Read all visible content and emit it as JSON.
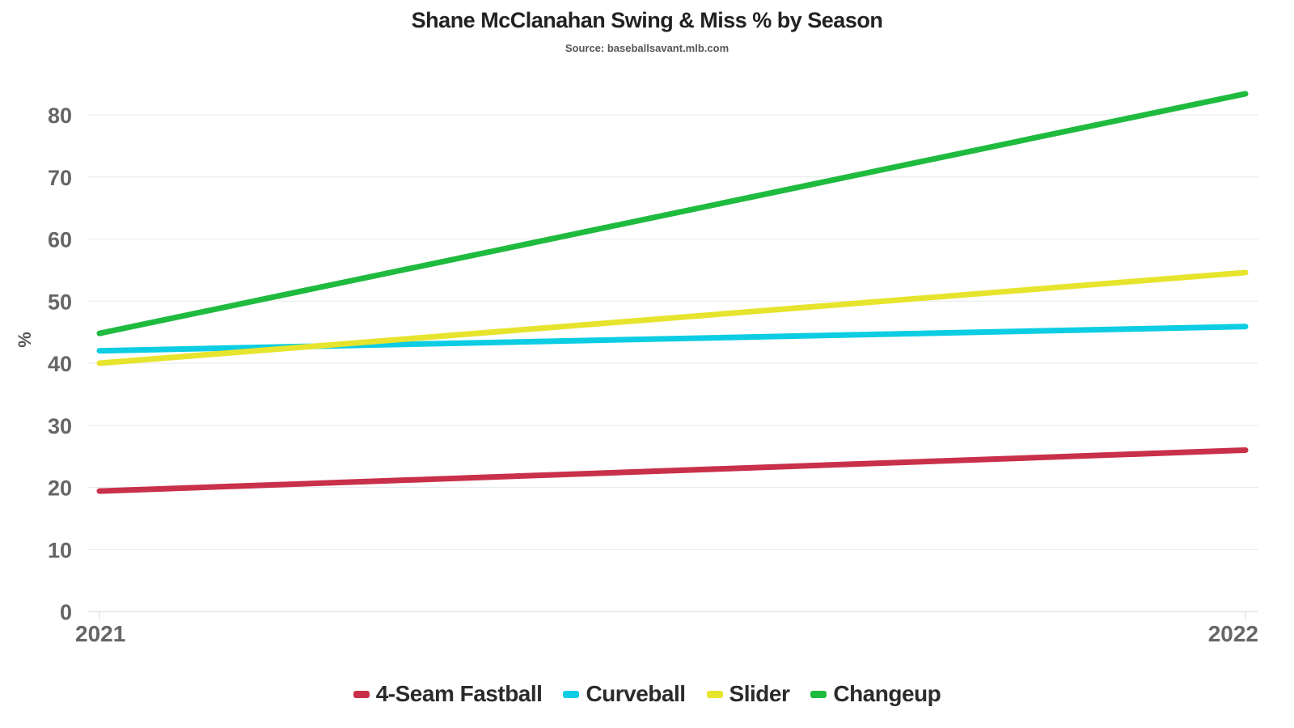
{
  "chart_data": {
    "type": "line",
    "title": "Shane McClanahan Swing & Miss % by Season",
    "subtitle": "Source: baseballsavant.mlb.com",
    "xlabel": "",
    "ylabel": "%",
    "categories": [
      "2021",
      "2022"
    ],
    "ylim": [
      0,
      80
    ],
    "yticks": [
      0,
      10,
      20,
      30,
      40,
      50,
      60,
      70,
      80
    ],
    "grid": true,
    "legend_position": "bottom",
    "series": [
      {
        "name": "4-Seam Fastball",
        "values": [
          19.4,
          26.0
        ],
        "color": "#c9304a"
      },
      {
        "name": "Curveball",
        "values": [
          42.0,
          45.9
        ],
        "color": "#0ccde3"
      },
      {
        "name": "Slider",
        "values": [
          40.0,
          54.6
        ],
        "color": "#e7e42e"
      },
      {
        "name": "Changeup",
        "values": [
          44.8,
          83.4
        ],
        "color": "#1fbb3f"
      }
    ]
  }
}
